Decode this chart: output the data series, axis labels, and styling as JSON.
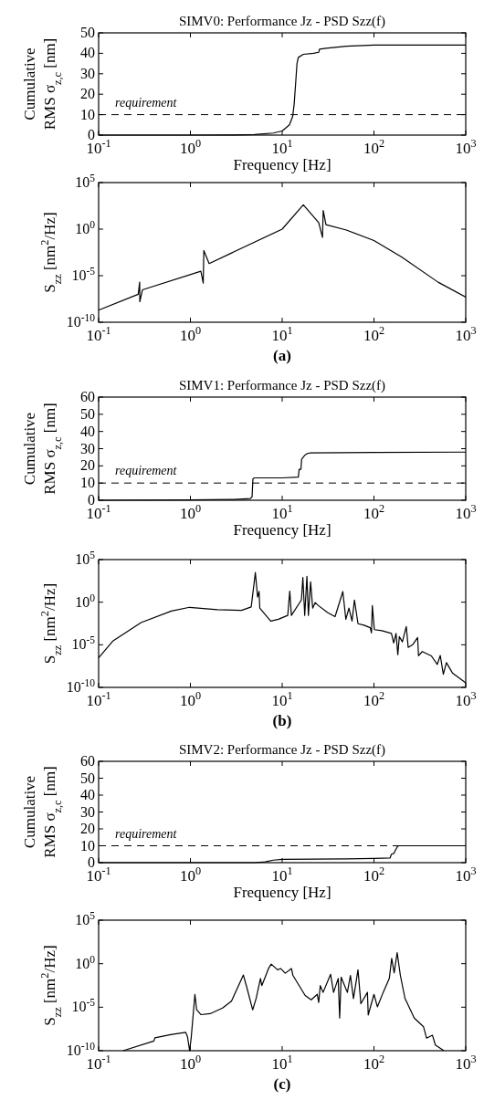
{
  "chart_data": [
    {
      "type": "line",
      "title": "SIMV0: Performance Jz - PSD Szz(f)",
      "xlabel": "Frequency [Hz]",
      "ylabel": "Cumulative\nRMS σ$_{z,c}$ [nm]",
      "log": "x",
      "xlim": [
        0.1,
        1000
      ],
      "ylim": [
        0,
        50
      ],
      "xticks": [
        {
          "value": 0.1,
          "label": "10$^{-1}$"
        },
        {
          "value": 1,
          "label": "10$^{0}$"
        },
        {
          "value": 10,
          "label": "10$^{1}$"
        },
        {
          "value": 100,
          "label": "10$^{2}$"
        },
        {
          "value": 1000,
          "label": "10$^{3}$"
        }
      ],
      "yticks": [
        0,
        10,
        20,
        30,
        40,
        50
      ],
      "grid": false,
      "ref_lines": [
        {
          "axis": "y",
          "value": 10,
          "label": "requirement",
          "line_style": "dashed",
          "color": "#000000"
        }
      ],
      "series": [
        {
          "color": "#000000",
          "x": [
            0.1,
            1,
            3,
            5,
            8,
            10,
            12,
            13,
            13.5,
            14,
            14.5,
            15,
            17,
            22,
            25,
            25.5,
            30,
            50,
            100,
            1000
          ],
          "values": [
            0,
            0,
            0.1,
            0.3,
            1,
            2,
            5,
            9,
            15,
            25,
            35,
            38,
            39.5,
            40,
            40.5,
            42,
            42.5,
            43.5,
            44,
            44
          ]
        }
      ]
    },
    {
      "type": "line",
      "ylabel": "S$_{zz}$ [nm$^{2}$/Hz]",
      "log": "xy",
      "xlim": [
        0.1,
        1000
      ],
      "ylim": [
        1e-10,
        100000.0
      ],
      "xticks": [
        {
          "value": 0.1,
          "label": "10$^{-1}$"
        },
        {
          "value": 1,
          "label": "10$^{0}$"
        },
        {
          "value": 10,
          "label": "10$^{1}$"
        },
        {
          "value": 100,
          "label": "10$^{2}$"
        },
        {
          "value": 1000,
          "label": "10$^{3}$"
        }
      ],
      "yticks": [
        {
          "value": 1e-10,
          "label": "10$^{-10}$"
        },
        {
          "value": 1e-05,
          "label": "10$^{-5}$"
        },
        {
          "value": 1,
          "label": "10$^{0}$"
        },
        {
          "value": 100000.0,
          "label": "10$^{5}$"
        }
      ],
      "grid": false,
      "annotations": [
        "(a)"
      ],
      "series": [
        {
          "color": "#000000",
          "x": [
            0.1,
            0.27,
            0.28,
            0.281,
            0.3,
            1.3,
            1.38,
            1.4,
            1.6,
            10,
            17,
            25,
            27.5,
            28,
            30,
            50,
            100,
            200,
            500,
            1000
          ],
          "values": [
            2e-09,
            1e-07,
            2e-06,
            1.6e-08,
            3e-07,
            3e-05,
            1.6e-06,
            0.005,
            0.0002,
            1,
            400,
            5,
            0.13,
            100,
            3,
            0.8,
            0.06,
            0.001,
            2e-06,
            5e-08
          ]
        }
      ]
    },
    {
      "type": "line",
      "title": "SIMV1: Performance Jz - PSD Szz(f)",
      "xlabel": "Frequency [Hz]",
      "ylabel": "Cumulative\nRMS σ$_{z,c}$ [nm]",
      "log": "x",
      "xlim": [
        0.1,
        1000
      ],
      "ylim": [
        0,
        60
      ],
      "xticks": [
        {
          "value": 0.1,
          "label": "10$^{-1}$"
        },
        {
          "value": 1,
          "label": "10$^{0}$"
        },
        {
          "value": 10,
          "label": "10$^{1}$"
        },
        {
          "value": 100,
          "label": "10$^{2}$"
        },
        {
          "value": 1000,
          "label": "10$^{3}$"
        }
      ],
      "yticks": [
        0,
        10,
        20,
        30,
        40,
        50,
        60
      ],
      "grid": false,
      "ref_lines": [
        {
          "axis": "y",
          "value": 10,
          "label": "requirement",
          "line_style": "dashed",
          "color": "#000000"
        }
      ],
      "series": [
        {
          "color": "#000000",
          "x": [
            0.1,
            1,
            3,
            4.5,
            4.7,
            4.8,
            5,
            10,
            15,
            15.3,
            16,
            16.3,
            17,
            17.5,
            18.5,
            20,
            100,
            1000
          ],
          "values": [
            0,
            0.2,
            0.5,
            1,
            2,
            12.5,
            13,
            13,
            13.5,
            18,
            18,
            24,
            25,
            26,
            27,
            27.5,
            27.8,
            28
          ]
        }
      ]
    },
    {
      "type": "line",
      "ylabel": "S$_{zz}$ [nm$^{2}$/Hz]",
      "log": "xy",
      "xlim": [
        0.1,
        1000
      ],
      "ylim": [
        1e-10,
        100000.0
      ],
      "xticks": [
        {
          "value": 0.1,
          "label": "10$^{-1}$"
        },
        {
          "value": 1,
          "label": "10$^{0}$"
        },
        {
          "value": 10,
          "label": "10$^{1}$"
        },
        {
          "value": 100,
          "label": "10$^{2}$"
        },
        {
          "value": 1000,
          "label": "10$^{3}$"
        }
      ],
      "yticks": [
        {
          "value": 1e-10,
          "label": "10$^{-10}$"
        },
        {
          "value": 1e-05,
          "label": "10$^{-5}$"
        },
        {
          "value": 1,
          "label": "10$^{0}$"
        },
        {
          "value": 100000.0,
          "label": "10$^{5}$"
        }
      ],
      "grid": false,
      "annotations": [
        "(b)"
      ],
      "series": [
        {
          "color": "#000000",
          "x": [
            0.1,
            0.144,
            0.29,
            0.62,
            0.98,
            1.97,
            3.6,
            4.6,
            5.1,
            5.4,
            5.6,
            5.7,
            7.5,
            9.1,
            11.5,
            12.1,
            12.6,
            16.2,
            16.8,
            17.6,
            18.6,
            19.3,
            20.4,
            21.5,
            22.9,
            24.8,
            31.2,
            37.7,
            45.8,
            49.4,
            53.4,
            57.7,
            61.3,
            67,
            78,
            91,
            94,
            96,
            101,
            122,
            155,
            164,
            174,
            182,
            189,
            204,
            225,
            236,
            266,
            299,
            306,
            336,
            422,
            490,
            528,
            570,
            616,
            716,
            1000
          ],
          "values": [
            3e-07,
            3e-05,
            0.004,
            0.09,
            0.25,
            0.13,
            0.11,
            0.28,
            3000,
            4,
            18,
            0.2,
            0.006,
            0.01,
            0.028,
            20,
            0.028,
            1.8,
            800,
            0.028,
            1100,
            0.028,
            250,
            0.2,
            0.9,
            0.4,
            0.06,
            0.02,
            18,
            0.01,
            0.2,
            0.006,
            1.8,
            0.003,
            0.002,
            0.001,
            0.00025,
            0.4,
            0.0006,
            0.00045,
            0.00022,
            1.6e-05,
            0.00022,
            7e-07,
            9e-05,
            2.2e-05,
            0.0014,
            5e-06,
            1.1e-05,
            7e-05,
            5e-07,
            1.6e-06,
            5e-07,
            5e-08,
            5.6e-07,
            3.5e-09,
            8e-08,
            5e-09,
            3.5e-10
          ]
        }
      ]
    },
    {
      "type": "line",
      "title": "SIMV2: Performance Jz - PSD Szz(f)",
      "xlabel": "Frequency [Hz]",
      "ylabel": "Cumulative\nRMS σ$_{z,c}$ [nm]",
      "log": "x",
      "xlim": [
        0.1,
        1000
      ],
      "ylim": [
        0,
        60
      ],
      "xticks": [
        {
          "value": 0.1,
          "label": "10$^{-1}$"
        },
        {
          "value": 1,
          "label": "10$^{0}$"
        },
        {
          "value": 10,
          "label": "10$^{1}$"
        },
        {
          "value": 100,
          "label": "10$^{2}$"
        },
        {
          "value": 1000,
          "label": "10$^{3}$"
        }
      ],
      "yticks": [
        0,
        10,
        20,
        30,
        40,
        50,
        60
      ],
      "grid": false,
      "ref_lines": [
        {
          "axis": "y",
          "value": 10,
          "label": "requirement",
          "line_style": "dashed",
          "color": "#000000"
        }
      ],
      "series": [
        {
          "color": "#000000",
          "x": [
            0.1,
            5,
            6.5,
            8,
            10,
            50,
            100,
            150,
            155,
            165,
            170,
            180,
            185,
            1000
          ],
          "values": [
            0,
            0,
            0.5,
            1.5,
            2,
            2.2,
            2.5,
            2.8,
            5,
            5.5,
            7,
            9.5,
            10,
            10
          ]
        }
      ]
    },
    {
      "type": "line",
      "ylabel": "S$_{zz}$ [nm$^{2}$/Hz]",
      "log": "xy",
      "xlim": [
        0.1,
        1000
      ],
      "ylim": [
        1e-10,
        100000.0
      ],
      "xticks": [
        {
          "value": 0.1,
          "label": "10$^{-1}$"
        },
        {
          "value": 1,
          "label": "10$^{0}$"
        },
        {
          "value": 10,
          "label": "10$^{1}$"
        },
        {
          "value": 100,
          "label": "10$^{2}$"
        },
        {
          "value": 1000,
          "label": "10$^{3}$"
        }
      ],
      "yticks": [
        {
          "value": 1e-10,
          "label": "10$^{-10}$"
        },
        {
          "value": 1e-05,
          "label": "10$^{-5}$"
        },
        {
          "value": 1,
          "label": "10$^{0}$"
        },
        {
          "value": 100000.0,
          "label": "10$^{5}$"
        }
      ],
      "grid": false,
      "annotations": [
        "(c)"
      ],
      "series": [
        {
          "color": "#000000",
          "x": [
            0.185,
            0.4,
            0.41,
            0.61,
            0.89,
            0.93,
            0.98,
            1.02,
            1.12,
            1.17,
            1.3,
            1.64,
            2.24,
            2.8,
            3.78,
            4.1,
            4.77,
            5.2,
            5.8,
            6,
            7.1,
            7.6,
            8.9,
            9.6,
            10.8,
            12.6,
            13.1,
            17.8,
            20.7,
            24.1,
            25,
            26,
            27.9,
            33.7,
            36.3,
            40.8,
            42.3,
            43.9,
            51.3,
            55.4,
            59.8,
            67,
            72,
            84.9,
            86.6,
            100,
            109,
            126,
            147,
            156,
            166,
            179,
            194,
            218,
            275,
            347,
            374,
            434,
            467,
            578
          ],
          "values": [
            1e-10,
            1.3e-09,
            3e-09,
            7e-09,
            1.3e-08,
            4e-09,
            1e-10,
            3e-09,
            0.0003,
            5e-06,
            1.4e-06,
            1.8e-06,
            8e-06,
            5e-05,
            0.05,
            0.0022,
            5e-06,
            0.0001,
            0.02,
            0.003,
            0.28,
            0.9,
            0.2,
            0.28,
            0.08,
            0.28,
            0.045,
            0.00022,
            7e-05,
            0.0003,
            3.5e-05,
            0.003,
            0.0005,
            0.06,
            0.0005,
            0.02,
            5.6e-07,
            0.028,
            0.0005,
            0.045,
            0.0001,
            0.2,
            2.5e-05,
            0.0005,
            1.3e-06,
            0.0003,
            1.1e-05,
            0.0005,
            0.02,
            4,
            0.09,
            18,
            0.045,
            0.0001,
            5.6e-07,
            5.6e-08,
            2.8e-09,
            6e-09,
            4.5e-10,
            1e-10
          ]
        }
      ]
    }
  ]
}
